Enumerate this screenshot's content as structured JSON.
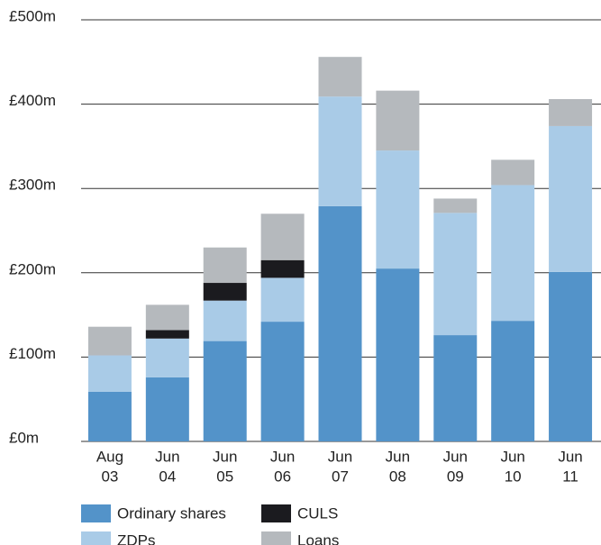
{
  "chart_data": {
    "type": "stacked_bar",
    "categories": [
      [
        "Aug",
        "03"
      ],
      [
        "Jun",
        "04"
      ],
      [
        "Jun",
        "05"
      ],
      [
        "Jun",
        "06"
      ],
      [
        "Jun",
        "07"
      ],
      [
        "Jun",
        "08"
      ],
      [
        "Jun",
        "09"
      ],
      [
        "Jun",
        "10"
      ],
      [
        "Jun",
        "11"
      ]
    ],
    "series": [
      {
        "name": "Ordinary shares",
        "color": "#5393c9",
        "values": [
          59,
          76,
          119,
          142,
          279,
          205,
          126,
          143,
          201
        ]
      },
      {
        "name": "ZDPs",
        "color": "#a9cbe7",
        "values": [
          43,
          46,
          48,
          52,
          130,
          140,
          145,
          161,
          173
        ]
      },
      {
        "name": "CULS",
        "color": "#1b1b1f",
        "values": [
          0,
          10,
          21,
          21,
          0,
          0,
          0,
          0,
          0
        ]
      },
      {
        "name": "Loans",
        "color": "#b5b9bd",
        "values": [
          34,
          30,
          42,
          55,
          47,
          71,
          17,
          30,
          32
        ]
      }
    ],
    "ylim": [
      0,
      500
    ],
    "yticks": [
      {
        "value": 0,
        "label": "£0m"
      },
      {
        "value": 100,
        "label": "£100m"
      },
      {
        "value": 200,
        "label": "£200m"
      },
      {
        "value": 300,
        "label": "£300m"
      },
      {
        "value": 400,
        "label": "£400m"
      },
      {
        "value": 500,
        "label": "£500m"
      }
    ],
    "grid": true
  }
}
